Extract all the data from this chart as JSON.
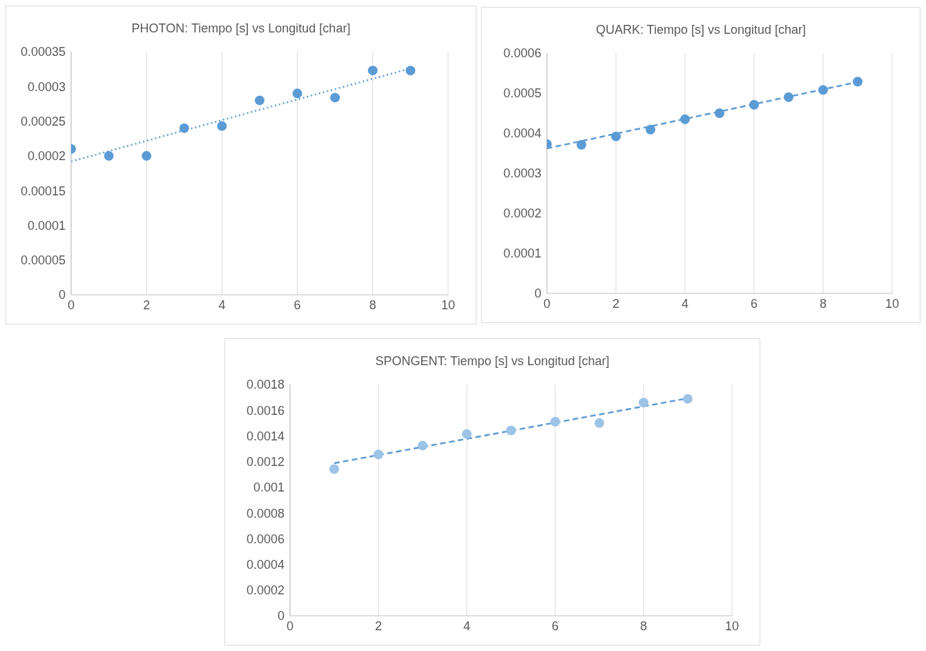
{
  "chart_data": [
    {
      "type": "scatter",
      "title": "PHOTON: Tiempo [s] vs Longitud [char]",
      "x": [
        0,
        1,
        2,
        3,
        4,
        5,
        6,
        7,
        8,
        9
      ],
      "grid": true,
      "legend": false,
      "series": [
        {
          "color": "#5b9bd5",
          "marker": "circle",
          "values": [
            0.00021,
            0.0002,
            0.0002,
            0.00024,
            0.000243,
            0.00028,
            0.00029,
            0.000284,
            0.000323,
            0.000323
          ]
        },
        {
          "type": "line",
          "color": "#5b9bd5",
          "marker": "none",
          "line_style": "dotted",
          "x": [
            0,
            9
          ],
          "values": [
            0.000192,
            0.000326
          ]
        }
      ],
      "xlim": [
        0,
        10
      ],
      "xticks": [
        0,
        2,
        4,
        6,
        8,
        10
      ],
      "ylim": [
        0,
        0.00035
      ],
      "yticks": [
        0,
        {
          "value": 5e-05,
          "label": "0.00005"
        },
        0.0001,
        0.00015,
        0.0002,
        0.00025,
        0.0003,
        0.00035
      ]
    },
    {
      "type": "scatter",
      "title": "QUARK: Tiempo [s] vs Longitud [char]",
      "x": [
        0,
        1,
        2,
        3,
        4,
        5,
        6,
        7,
        8,
        9
      ],
      "grid": true,
      "legend": false,
      "series": [
        {
          "color": "#5b9bd5",
          "marker": "circle",
          "values": [
            0.000373,
            0.000371,
            0.000392,
            0.000409,
            0.000435,
            0.00045,
            0.000471,
            0.00049,
            0.000508,
            0.000529
          ]
        },
        {
          "type": "line",
          "color": "#5b9bd5",
          "marker": "none",
          "line_style": "dashed",
          "x": [
            0,
            9
          ],
          "values": [
            0.000362,
            0.000528
          ]
        }
      ],
      "xlim": [
        0,
        10
      ],
      "xticks": [
        0,
        2,
        4,
        6,
        8,
        10
      ],
      "ylim": [
        0,
        0.0006
      ],
      "yticks": [
        0,
        0.0001,
        0.0002,
        0.0003,
        0.0004,
        0.0005,
        0.0006
      ]
    },
    {
      "type": "scatter",
      "title": "SPONGENT: Tiempo [s] vs Longitud [char]",
      "x": [
        1,
        2,
        3,
        4,
        5,
        6,
        7,
        8,
        9
      ],
      "grid": true,
      "legend": false,
      "series": [
        {
          "color": "#9dc3e6",
          "marker": "circle",
          "values": [
            0.001142,
            0.001256,
            0.001324,
            0.001415,
            0.001443,
            0.001511,
            0.0015,
            0.001659,
            0.001688
          ]
        },
        {
          "type": "line",
          "color": "#5b9bd5",
          "marker": "none",
          "line_style": "dashed",
          "x": [
            1,
            9
          ],
          "values": [
            0.001188,
            0.001693
          ]
        }
      ],
      "xlim": [
        0,
        10
      ],
      "xticks": [
        0,
        2,
        4,
        6,
        8,
        10
      ],
      "ylim": [
        0,
        0.0018
      ],
      "yticks": [
        0,
        0.0002,
        0.0004,
        0.0006,
        0.0008,
        0.001,
        0.0012,
        0.0014,
        0.0016,
        0.0018
      ]
    }
  ]
}
